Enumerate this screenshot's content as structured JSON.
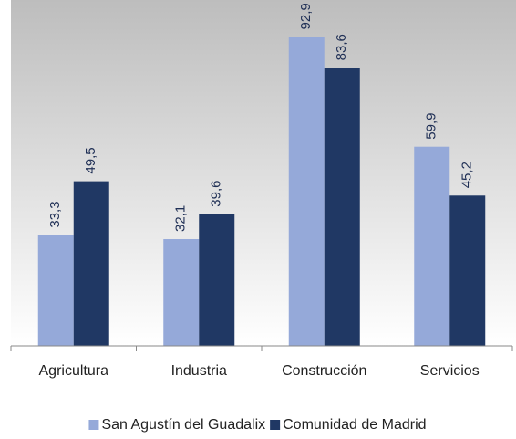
{
  "chart_data": {
    "type": "bar",
    "categories": [
      "Agricultura",
      "Industria",
      "Construcción",
      "Servicios"
    ],
    "series": [
      {
        "name": "San Agustín del Guadalix",
        "color": "#95a9d9",
        "values": [
          33.3,
          32.1,
          92.9,
          59.9
        ],
        "value_labels": [
          "33,3",
          "32,1",
          "92,9",
          "59,9"
        ]
      },
      {
        "name": "Comunidad de Madrid",
        "color": "#203864",
        "values": [
          49.5,
          39.6,
          83.6,
          45.2
        ],
        "value_labels": [
          "49,5",
          "39,6",
          "83,6",
          "45,2"
        ]
      }
    ],
    "ylim": [
      0,
      104
    ],
    "legend": "bottom"
  }
}
